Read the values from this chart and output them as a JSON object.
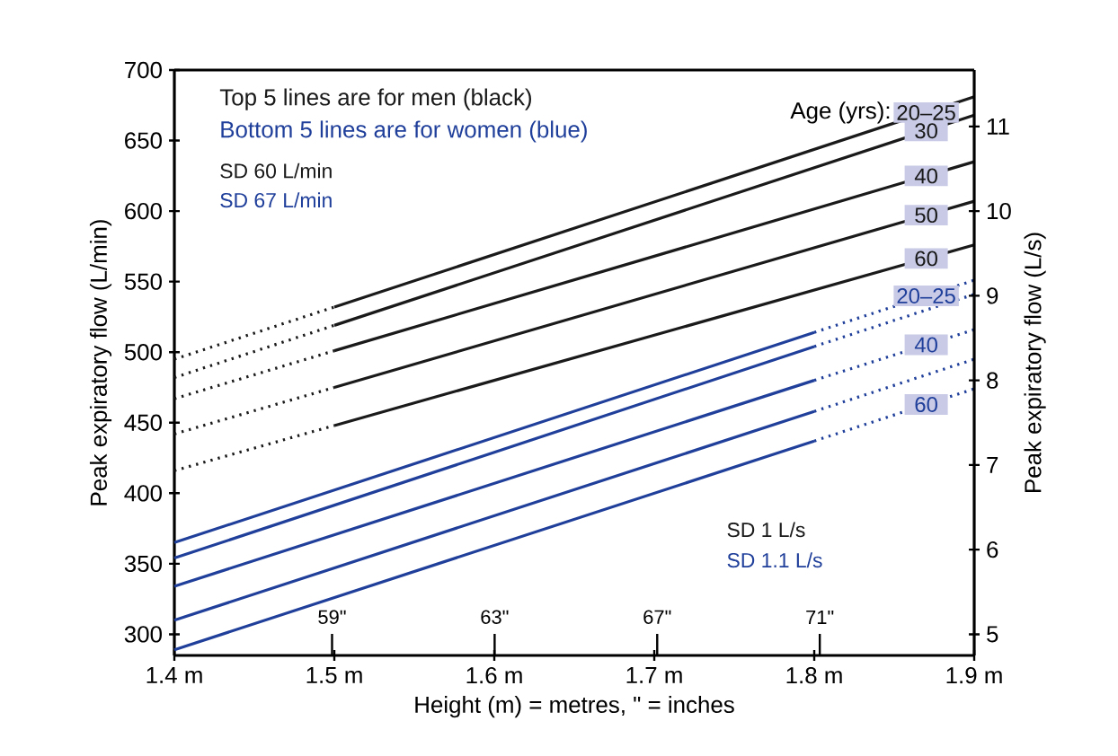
{
  "chart_data": {
    "type": "line",
    "xlabel": "Height (m) = metres, \" = inches",
    "ylabel": "Peak expiratory flow (L/min)",
    "y2label": "Peak expiratory flow (L/s)",
    "xlim": [
      1.4,
      1.9
    ],
    "xticks": [
      {
        "value": 1.4,
        "label": "1.4 m"
      },
      {
        "value": 1.5,
        "label": "1.5 m"
      },
      {
        "value": 1.6,
        "label": "1.6 m"
      },
      {
        "value": 1.7,
        "label": "1.7 m"
      },
      {
        "value": 1.8,
        "label": "1.8 m"
      },
      {
        "value": 1.9,
        "label": "1.9 m"
      }
    ],
    "x2lim": [
      55.12,
      74.8
    ],
    "x2ticks": [
      {
        "value": 59,
        "label": "59\""
      },
      {
        "value": 63,
        "label": "63\""
      },
      {
        "value": 67,
        "label": "67\""
      },
      {
        "value": 71,
        "label": "71\""
      }
    ],
    "ylim": [
      285,
      700
    ],
    "yticks": [
      300,
      350,
      400,
      450,
      500,
      550,
      600,
      650,
      700
    ],
    "y2lim": [
      4.75,
      11.6667
    ],
    "y2ticks": [
      5,
      6,
      7,
      8,
      9,
      10,
      11
    ],
    "grid": false,
    "legend_title": "Age (yrs):",
    "annotations": [
      "Top 5 lines are for men (black)",
      "Bottom 5 lines are for women (blue)",
      "SD 60 L/min",
      "SD 67 L/min",
      "SD 1 L/s",
      "SD 1.1 L/s"
    ],
    "series": [
      {
        "color": "#1a1a1a",
        "line_style": "dotted",
        "x": [
          1.4,
          1.5
        ],
        "values": [
          495,
          532
        ]
      },
      {
        "name": "20–25",
        "color": "#1a1a1a",
        "line_style": "solid",
        "x": [
          1.5,
          1.9
        ],
        "values": [
          532,
          681
        ]
      },
      {
        "color": "#1a1a1a",
        "line_style": "dotted",
        "x": [
          1.4,
          1.5
        ],
        "values": [
          482,
          519
        ]
      },
      {
        "name": "30",
        "color": "#1a1a1a",
        "line_style": "solid",
        "x": [
          1.5,
          1.9
        ],
        "values": [
          519,
          668
        ]
      },
      {
        "color": "#1a1a1a",
        "line_style": "dotted",
        "x": [
          1.4,
          1.5
        ],
        "values": [
          467,
          501
        ]
      },
      {
        "name": "40",
        "color": "#1a1a1a",
        "line_style": "solid",
        "x": [
          1.5,
          1.9
        ],
        "values": [
          501,
          635
        ]
      },
      {
        "color": "#1a1a1a",
        "line_style": "dotted",
        "x": [
          1.4,
          1.5
        ],
        "values": [
          442,
          475
        ]
      },
      {
        "name": "50",
        "color": "#1a1a1a",
        "line_style": "solid",
        "x": [
          1.5,
          1.9
        ],
        "values": [
          475,
          607
        ]
      },
      {
        "color": "#1a1a1a",
        "line_style": "dotted",
        "x": [
          1.4,
          1.5
        ],
        "values": [
          416,
          448
        ]
      },
      {
        "name": "60",
        "color": "#1a1a1a",
        "line_style": "solid",
        "x": [
          1.5,
          1.9
        ],
        "values": [
          448,
          576
        ]
      },
      {
        "color": "#1f3f9a",
        "line_style": "solid",
        "x": [
          1.4,
          1.8
        ],
        "values": [
          365,
          514
        ]
      },
      {
        "name": "20–25",
        "color": "#1f3f9a",
        "line_style": "dotted",
        "x": [
          1.8,
          1.9
        ],
        "values": [
          514,
          551
        ]
      },
      {
        "color": "#1f3f9a",
        "line_style": "solid",
        "x": [
          1.4,
          1.8
        ],
        "values": [
          354,
          504
        ]
      },
      {
        "color": "#1f3f9a",
        "line_style": "dotted",
        "x": [
          1.8,
          1.9
        ],
        "values": [
          504,
          541
        ]
      },
      {
        "color": "#1f3f9a",
        "line_style": "solid",
        "x": [
          1.4,
          1.8
        ],
        "values": [
          334,
          480
        ]
      },
      {
        "name": "40",
        "color": "#1f3f9a",
        "line_style": "dotted",
        "x": [
          1.8,
          1.9
        ],
        "values": [
          480,
          516
        ]
      },
      {
        "color": "#1f3f9a",
        "line_style": "solid",
        "x": [
          1.4,
          1.8
        ],
        "values": [
          310,
          458
        ]
      },
      {
        "color": "#1f3f9a",
        "line_style": "dotted",
        "x": [
          1.8,
          1.9
        ],
        "values": [
          458,
          495
        ]
      },
      {
        "color": "#1f3f9a",
        "line_style": "solid",
        "x": [
          1.4,
          1.8
        ],
        "values": [
          289,
          437
        ]
      },
      {
        "name": "60",
        "color": "#1f3f9a",
        "line_style": "dotted",
        "x": [
          1.8,
          1.9
        ],
        "values": [
          437,
          474
        ]
      }
    ]
  }
}
